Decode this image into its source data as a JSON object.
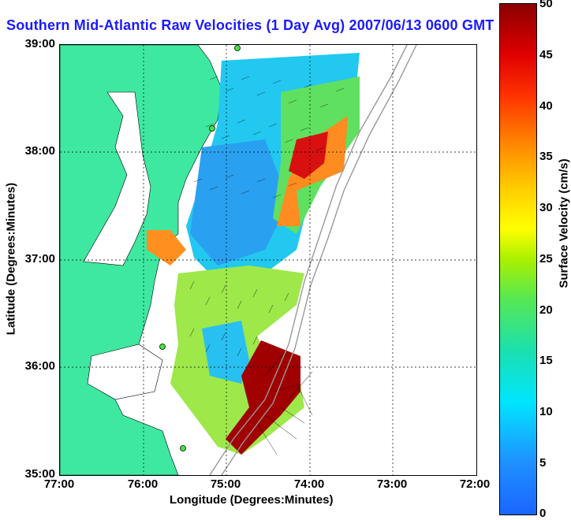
{
  "title": "Southern Mid-Atlantic Raw Velocities (1 Day Avg) 2007/06/13 0600 GMT",
  "x_axis": {
    "label": "Longitude (Degrees:Minutes)",
    "ticks": [
      "77:00",
      "76:00",
      "75:00",
      "74:00",
      "73:00",
      "72:00"
    ]
  },
  "y_axis": {
    "label": "Latitude (Degrees:Minutes)",
    "ticks": [
      "39:00",
      "38:00",
      "37:00",
      "36:00",
      "35:00"
    ]
  },
  "colorbar": {
    "label": "Surface Velocity (cm/s)",
    "ticks": [
      "50",
      "45",
      "40",
      "35",
      "30",
      "25",
      "20",
      "15",
      "10",
      "5",
      "0"
    ],
    "colors": [
      "#1a66ff",
      "#00e5ff",
      "#55e855",
      "#ffff00",
      "#ff8c00",
      "#e00000",
      "#8b0000"
    ]
  },
  "map": {
    "land_color": "#3ee8a0",
    "grid": "dotted",
    "markers": "green-circles"
  }
}
